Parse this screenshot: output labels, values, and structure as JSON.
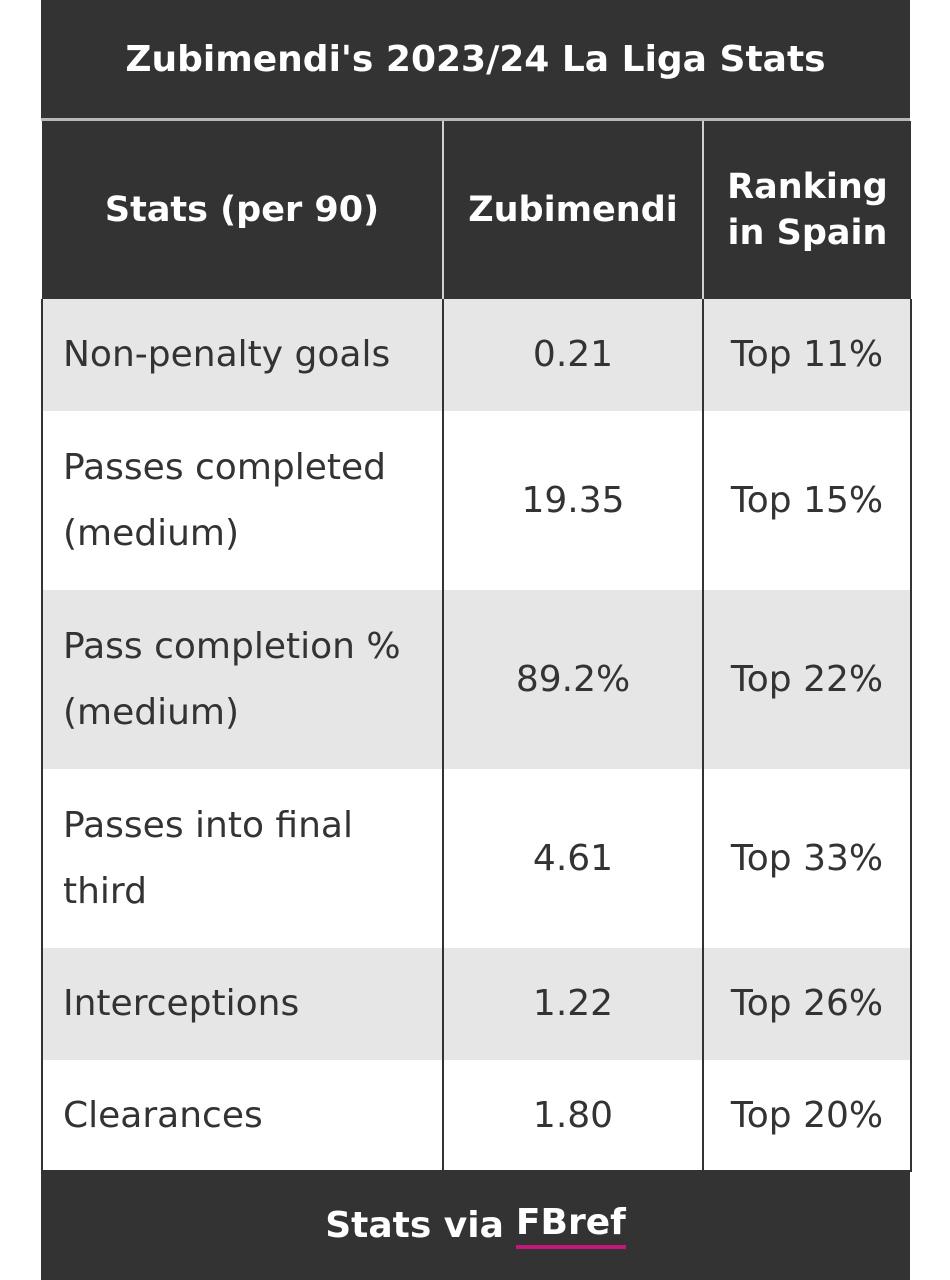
{
  "title": "Zubimendi's 2023/24 La Liga Stats",
  "table": {
    "headers": {
      "stat": "Stats (per 90)",
      "player": "Zubimendi",
      "ranking_line1": "Ranking",
      "ranking_line2": "in Spain"
    },
    "rows": [
      {
        "stat_line1": "Non-penalty goals",
        "stat_line2": "",
        "value": "0.21",
        "ranking": "Top 11%"
      },
      {
        "stat_line1": "Passes completed",
        "stat_line2": "(medium)",
        "value": "19.35",
        "ranking": "Top 15%"
      },
      {
        "stat_line1": "Pass completion %",
        "stat_line2": "(medium)",
        "value": "89.2%",
        "ranking": "Top 22%"
      },
      {
        "stat_line1": "Passes into final",
        "stat_line2": "third",
        "value": "4.61",
        "ranking": "Top 33%"
      },
      {
        "stat_line1": "Interceptions",
        "stat_line2": "",
        "value": "1.22",
        "ranking": "Top 26%"
      },
      {
        "stat_line1": "Clearances",
        "stat_line2": "",
        "value": "1.80",
        "ranking": "Top 20%"
      }
    ]
  },
  "footer": {
    "prefix": "Stats via",
    "link_text": "FBref"
  },
  "colors": {
    "header_bg": "#333333",
    "row_shade": "#e6e6e6",
    "link_underline": "#c2187a"
  }
}
